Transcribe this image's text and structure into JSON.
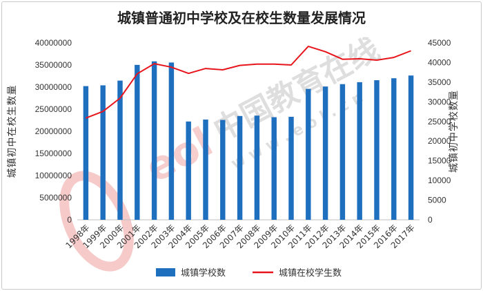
{
  "chart_data": {
    "type": "bar",
    "title": "城镇普通初中学校及在校生数量发展情况",
    "categories": [
      "1998年",
      "1999年",
      "2000年",
      "2001年",
      "2002年",
      "2003年",
      "2004年",
      "2005年",
      "2006年",
      "2007年",
      "2008年",
      "2009年",
      "2010年",
      "2011年",
      "2012年",
      "2013年",
      "2014年",
      "2015年",
      "2016年",
      "2017年"
    ],
    "series": [
      {
        "name": "城镇学校数",
        "type": "bar",
        "axis": "right",
        "color": "#1f6fbf",
        "values": [
          34000,
          34200,
          35400,
          39400,
          40300,
          40000,
          25000,
          25500,
          25400,
          26400,
          26500,
          26100,
          26200,
          33300,
          33900,
          34500,
          35000,
          35500,
          36000,
          36700
        ]
      },
      {
        "name": "城镇在校学生数",
        "type": "line",
        "axis": "left",
        "color": "#e8141b",
        "values": [
          23000000,
          24500000,
          27500000,
          33000000,
          35300000,
          34500000,
          33100000,
          34200000,
          33900000,
          34900000,
          35200000,
          35200000,
          35000000,
          39200000,
          38000000,
          36300000,
          36400000,
          36100000,
          36700000,
          38200000
        ]
      }
    ],
    "ylabel": "城镇初中在校生数量",
    "ylim": [
      0,
      40000000
    ],
    "yticks": [
      "0",
      "5000000",
      "10000000",
      "15000000",
      "20000000",
      "25000000",
      "30000000",
      "35000000",
      "40000000"
    ],
    "y2label": "城镇初中学校数量",
    "y2lim": [
      0,
      45000
    ],
    "y2ticks": [
      "0",
      "5000",
      "10000",
      "15000",
      "20000",
      "25000",
      "30000",
      "35000",
      "40000",
      "45000"
    ],
    "grid": false,
    "legend": "bottom"
  },
  "watermark": {
    "text": "中国教育在线",
    "url_text": "w w w . e o l . c n",
    "logo_text": "eol"
  }
}
